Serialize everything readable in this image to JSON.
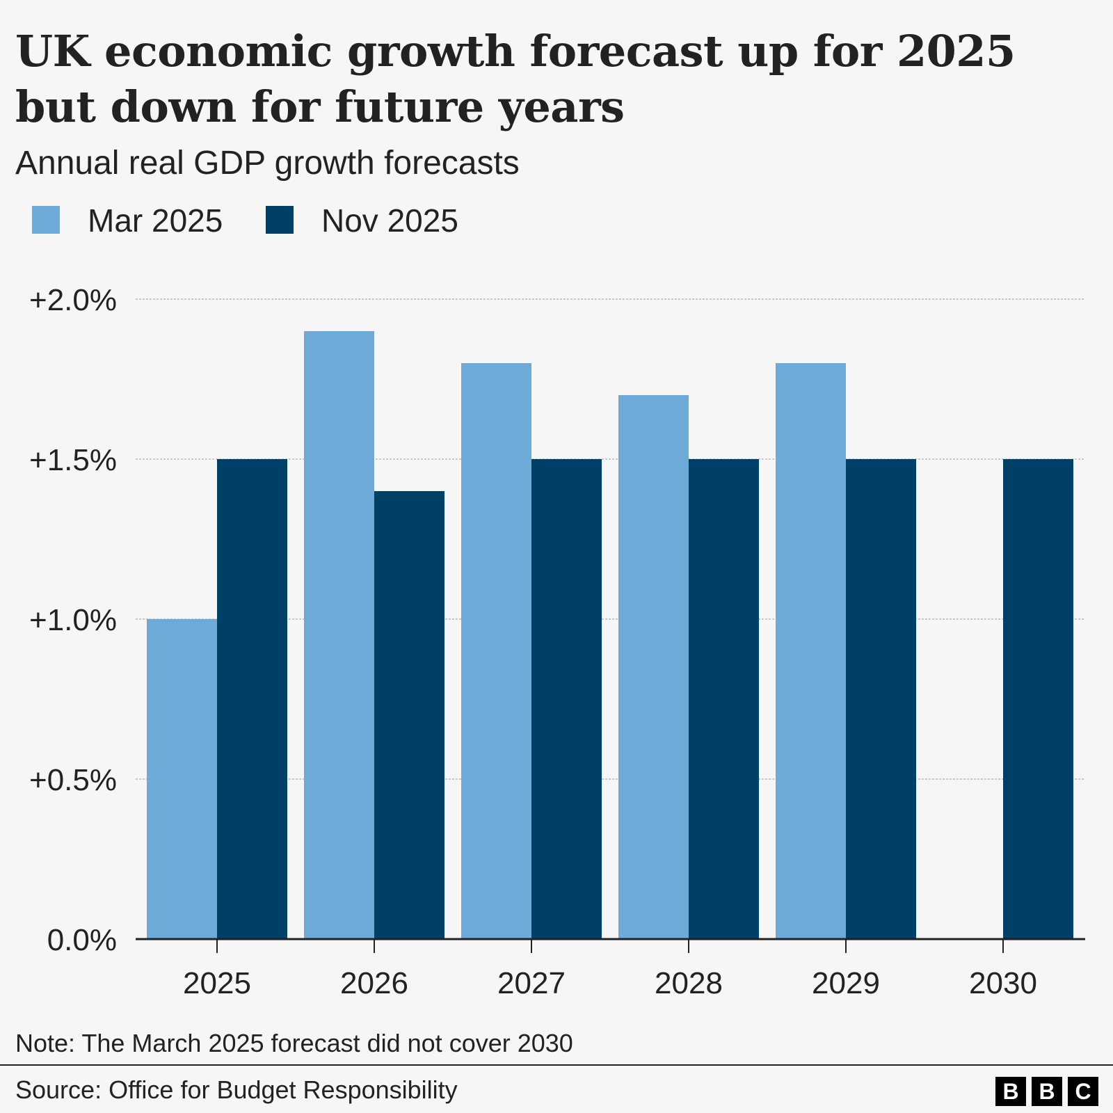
{
  "title": "UK economic growth forecast up for 2025 but down for future years",
  "subtitle": "Annual real GDP growth forecasts",
  "legend": [
    {
      "label": "Mar 2025",
      "color": "#6eaad8"
    },
    {
      "label": "Nov 2025",
      "color": "#003f66"
    }
  ],
  "note": "Note: The March 2025 forecast did not cover 2030",
  "source": "Source: Office for Budget Responsibility",
  "logo": [
    "B",
    "B",
    "C"
  ],
  "chart_data": {
    "type": "bar",
    "categories": [
      "2025",
      "2026",
      "2027",
      "2028",
      "2029",
      "2030"
    ],
    "series": [
      {
        "name": "Mar 2025",
        "color": "#6eaad8",
        "values": [
          1.0,
          1.9,
          1.8,
          1.7,
          1.8,
          null
        ]
      },
      {
        "name": "Nov 2025",
        "color": "#003f66",
        "values": [
          1.5,
          1.4,
          1.5,
          1.5,
          1.5,
          1.5
        ]
      }
    ],
    "ylim": [
      0,
      2.0
    ],
    "yticks": [
      0,
      0.5,
      1.0,
      1.5,
      2.0
    ],
    "ytick_labels": [
      "0.0%",
      "+0.5%",
      "+1.0%",
      "+1.5%",
      "+2.0%"
    ],
    "xlabel": "",
    "ylabel": "",
    "grid": true,
    "legend_position": "top-left"
  }
}
